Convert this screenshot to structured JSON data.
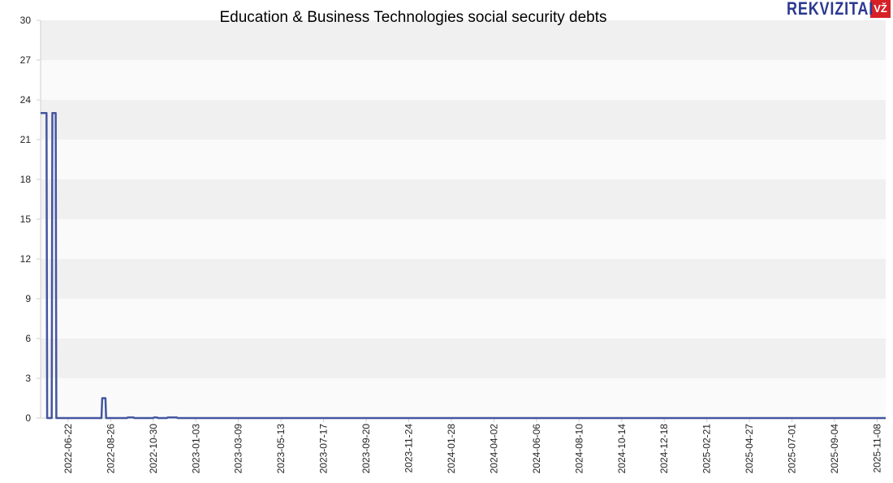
{
  "brand": {
    "word": "REKVIZITAI",
    "badge": "VŽ"
  },
  "chart_data": {
    "type": "line",
    "title": "Education & Business Technologies social security debts",
    "xlabel": "",
    "ylabel": "",
    "ylim": [
      0,
      30
    ],
    "yticks": [
      0,
      3,
      6,
      9,
      12,
      15,
      18,
      21,
      24,
      27,
      30
    ],
    "grid": "horizontal alternating bands",
    "line_color": "#4356a0",
    "x_start": "2022-05-11",
    "x_end": "2025-11-21",
    "xticks": [
      "2022-06-22",
      "2022-08-26",
      "2022-10-30",
      "2023-01-03",
      "2023-03-09",
      "2023-05-13",
      "2023-07-17",
      "2023-09-20",
      "2023-11-24",
      "2024-01-28",
      "2024-04-02",
      "2024-06-06",
      "2024-08-10",
      "2024-10-14",
      "2024-12-18",
      "2025-02-21",
      "2025-04-27",
      "2025-07-01",
      "2025-09-04",
      "2025-11-08"
    ],
    "series": [
      {
        "points": [
          [
            "2022-05-11",
            23.0
          ],
          [
            "2022-05-20",
            23.0
          ],
          [
            "2022-05-21",
            0
          ],
          [
            "2022-05-28",
            0
          ],
          [
            "2022-05-29",
            23.0
          ],
          [
            "2022-06-03",
            23.0
          ],
          [
            "2022-06-04",
            0
          ],
          [
            "2022-08-12",
            0
          ],
          [
            "2022-08-13",
            1.5
          ],
          [
            "2022-08-18",
            1.5
          ],
          [
            "2022-08-19",
            0
          ],
          [
            "2022-09-20",
            0
          ],
          [
            "2022-09-21",
            0.05
          ],
          [
            "2022-09-30",
            0.05
          ],
          [
            "2022-10-01",
            0
          ],
          [
            "2022-10-30",
            0
          ],
          [
            "2022-10-31",
            0.05
          ],
          [
            "2022-11-05",
            0.05
          ],
          [
            "2022-11-06",
            0
          ],
          [
            "2022-11-20",
            0
          ],
          [
            "2022-11-21",
            0.05
          ],
          [
            "2022-12-05",
            0.05
          ],
          [
            "2022-12-06",
            0
          ],
          [
            "2025-11-21",
            0
          ]
        ]
      }
    ]
  }
}
